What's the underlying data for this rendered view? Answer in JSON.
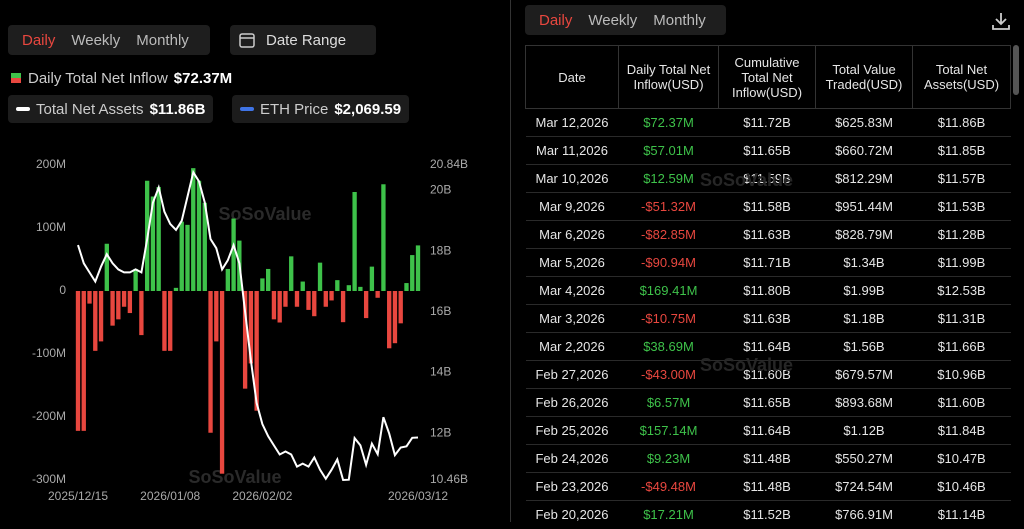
{
  "left_tabs": [
    "Daily",
    "Weekly",
    "Monthly"
  ],
  "date_range": "Date Range",
  "eth_price": {
    "name": "ETH Price",
    "value": "$2,069.59",
    "color": "#3f74e6"
  },
  "watermark": "SoSoValue",
  "chart_data": {
    "type": "bar",
    "categories": [
      "2025/12/15",
      null,
      null,
      null,
      null,
      null,
      null,
      null,
      null,
      null,
      null,
      null,
      null,
      null,
      null,
      null,
      "2026/01/08",
      null,
      null,
      null,
      null,
      null,
      null,
      null,
      null,
      null,
      null,
      null,
      null,
      null,
      null,
      null,
      "2026/02/02",
      null,
      null,
      null,
      null,
      null,
      null,
      null,
      null,
      null,
      null,
      null,
      null,
      null,
      null,
      null,
      null,
      null,
      null,
      null,
      null,
      null,
      null,
      null,
      null,
      null,
      null,
      "2026/03/12"
    ],
    "colors": {
      "positive": "#3ec24a",
      "negative": "#e8473f"
    },
    "series": [
      {
        "name": "Daily Total Net Inflow",
        "color": "#e8473f",
        "values": [
          -222,
          -222,
          -20,
          -95,
          -80,
          75,
          -55,
          -45,
          -25,
          -35,
          35,
          -70,
          175,
          150,
          165,
          -95,
          -95,
          5,
          110,
          105,
          195,
          175,
          140,
          -225,
          -80,
          -290,
          35,
          115,
          80,
          -155,
          -115,
          -190,
          20,
          35,
          -45,
          -50,
          -25,
          55,
          -25,
          15,
          -30,
          -40,
          45,
          -25,
          -15,
          17.21,
          -49.48,
          9.23,
          157.14,
          6.57,
          -43,
          38.69,
          -10.75,
          169.41,
          -90.94,
          -82.85,
          -51.32,
          12.59,
          57.01,
          72.37
        ]
      },
      {
        "name": "Total Net Assets",
        "color": "#ffffff",
        "axis": "y2",
        "values": [
          18.2,
          17.6,
          17.3,
          17.0,
          17.5,
          17.9,
          17.6,
          17.4,
          17.3,
          17.3,
          17.4,
          17.3,
          18.4,
          19.6,
          20.1,
          19.3,
          18.9,
          18.7,
          19.0,
          19.8,
          20.6,
          20.3,
          19.6,
          18.4,
          18.1,
          17.4,
          17.7,
          18.2,
          17.6,
          16.0,
          14.4,
          13.0,
          12.3,
          11.9,
          11.6,
          11.3,
          11.4,
          11.3,
          10.9,
          11.0,
          10.9,
          11.2,
          10.8,
          10.5,
          10.8,
          11.14,
          10.46,
          10.47,
          11.84,
          11.6,
          10.96,
          11.66,
          11.31,
          12.53,
          11.99,
          11.28,
          11.53,
          11.57,
          11.85,
          11.86
        ]
      }
    ],
    "summary": [
      "$72.37M",
      "$11.86B"
    ],
    "ylim": [
      -300,
      200
    ],
    "yticks": [
      {
        "value": 200,
        "label": "200M"
      },
      {
        "value": 100,
        "label": "100M"
      },
      0,
      {
        "value": -100,
        "label": "-100M"
      },
      {
        "value": -200,
        "label": "-200M"
      },
      {
        "value": -300,
        "label": "-300M"
      }
    ],
    "y2lim": [
      10.46,
      20.84
    ],
    "y2ticks": [
      {
        "value": 20.84,
        "label": "20.84B"
      },
      {
        "value": 20,
        "label": "20B"
      },
      {
        "value": 18,
        "label": "18B"
      },
      {
        "value": 16,
        "label": "16B"
      },
      {
        "value": 14,
        "label": "14B"
      },
      {
        "value": 12,
        "label": "12B"
      },
      {
        "value": 10.46,
        "label": "10.46B"
      }
    ]
  },
  "table": {
    "tabs": [
      "Daily",
      "Weekly",
      "Monthly"
    ],
    "columns": [
      "Date",
      "Daily Total Net Inflow(USD)",
      "Cumulative Total Net Inflow(USD)",
      "Total Value Traded(USD)",
      "Total Net Assets(USD)"
    ],
    "rows": [
      [
        "Mar 12,2026",
        "$72.37M",
        "$11.72B",
        "$625.83M",
        "$11.86B"
      ],
      [
        "Mar 11,2026",
        "$57.01M",
        "$11.65B",
        "$660.72M",
        "$11.85B"
      ],
      [
        "Mar 10,2026",
        "$12.59M",
        "$11.59B",
        "$812.29M",
        "$11.57B"
      ],
      [
        "Mar 9,2026",
        "-$51.32M",
        "$11.58B",
        "$951.44M",
        "$11.53B"
      ],
      [
        "Mar 6,2026",
        "-$82.85M",
        "$11.63B",
        "$828.79M",
        "$11.28B"
      ],
      [
        "Mar 5,2026",
        "-$90.94M",
        "$11.71B",
        "$1.34B",
        "$11.99B"
      ],
      [
        "Mar 4,2026",
        "$169.41M",
        "$11.80B",
        "$1.99B",
        "$12.53B"
      ],
      [
        "Mar 3,2026",
        "-$10.75M",
        "$11.63B",
        "$1.18B",
        "$11.31B"
      ],
      [
        "Mar 2,2026",
        "$38.69M",
        "$11.64B",
        "$1.56B",
        "$11.66B"
      ],
      [
        "Feb 27,2026",
        "-$43.00M",
        "$11.60B",
        "$679.57M",
        "$10.96B"
      ],
      [
        "Feb 26,2026",
        "$6.57M",
        "$11.65B",
        "$893.68M",
        "$11.60B"
      ],
      [
        "Feb 25,2026",
        "$157.14M",
        "$11.64B",
        "$1.12B",
        "$11.84B"
      ],
      [
        "Feb 24,2026",
        "$9.23M",
        "$11.48B",
        "$550.27M",
        "$10.47B"
      ],
      [
        "Feb 23,2026",
        "-$49.48M",
        "$11.48B",
        "$724.54M",
        "$10.46B"
      ],
      [
        "Feb 20,2026",
        "$17.21M",
        "$11.52B",
        "$766.91M",
        "$11.14B"
      ]
    ]
  }
}
